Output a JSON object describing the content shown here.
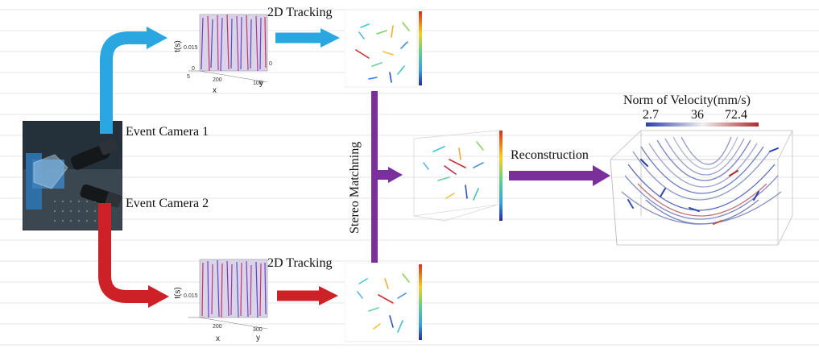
{
  "camera_labels": {
    "cam1": "Event Camera 1",
    "cam2": "Event Camera 2"
  },
  "tracking": {
    "top_label": "2D Tracking",
    "bottom_label": "2D Tracking"
  },
  "stereo_label": "Stereo Matchning",
  "reconstruction_label": "Reconstruction",
  "velocity_legend": {
    "title": "Norm of Velocity(mm/s)",
    "ticks": [
      "2.7",
      "36",
      "72.4"
    ]
  },
  "event_plot_top": {
    "t_label": "t(s)",
    "t_tick": "0.015",
    "y_ticks_left": [
      "0",
      "5"
    ],
    "x_label": "x",
    "y_label": "y",
    "x_ticks": [
      "200",
      "100"
    ],
    "y_tick_mid": "0"
  },
  "event_plot_bottom": {
    "t_label": "t(s)",
    "t_tick": "0.015",
    "x_label": "x",
    "y_label": "y",
    "x_ticks": [
      "200",
      "300"
    ]
  },
  "colors": {
    "cam1_arrow": "#2aa7e0",
    "cam2_arrow": "#cc2127",
    "stereo_arrow": "#7a2f9a"
  }
}
